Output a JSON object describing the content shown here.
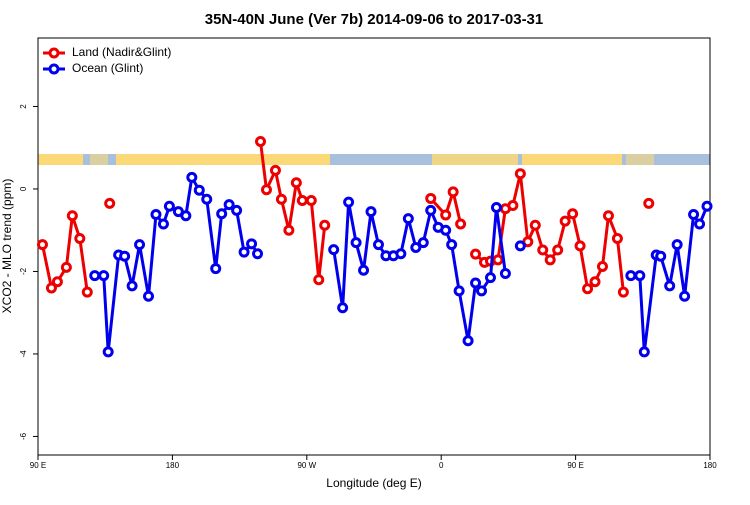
{
  "chart_data": {
    "type": "line",
    "title": "35N-40N June (Ver 7b)   2014-09-06 to 2017-03-31",
    "x_label": "Longitude (deg E)",
    "y_label": "XCO2 - MLO trend (ppm)",
    "xlim": [
      90,
      540
    ],
    "xticks": [
      {
        "value": 90,
        "label": "90 E"
      },
      180,
      {
        "value": 270,
        "label": "90 W"
      },
      {
        "value": 360,
        "label": "0"
      },
      {
        "value": 450,
        "label": "90 E"
      },
      {
        "value": 540,
        "label": "180"
      }
    ],
    "ylim": [
      -6.45,
      3.66
    ],
    "yticks": [
      -6,
      -4,
      -2,
      0,
      2
    ],
    "legend": "top-left",
    "series": [
      {
        "name": "Land (Nadir&Glint)",
        "color": "#ee0000",
        "x": [
          93,
          99,
          103,
          109,
          113,
          118,
          123,
          null,
          138,
          null,
          239,
          243,
          249,
          253,
          258,
          263,
          267,
          273,
          278,
          282,
          null,
          353,
          363,
          368,
          373,
          null,
          383,
          389,
          393,
          398,
          403,
          408,
          413,
          418,
          423,
          428,
          433,
          438,
          443,
          448,
          453,
          458,
          463,
          468,
          472,
          478,
          482,
          null,
          499
        ],
        "values": [
          -1.35,
          -2.4,
          -2.25,
          -1.9,
          -0.65,
          -1.2,
          -2.5,
          null,
          -0.35,
          null,
          1.15,
          -0.02,
          0.45,
          -0.25,
          -1.0,
          0.15,
          -0.28,
          -0.28,
          -2.2,
          -0.88,
          null,
          -0.23,
          -0.63,
          -0.07,
          -0.85,
          null,
          -1.58,
          -1.78,
          -1.75,
          -1.72,
          -0.48,
          -0.4,
          0.37,
          -1.28,
          -0.88,
          -1.48,
          -1.72,
          -1.48,
          -0.78,
          -0.6,
          -1.38,
          -2.42,
          -2.25,
          -1.88,
          -0.65,
          -1.2,
          -2.5,
          null,
          -0.35
        ]
      },
      {
        "name": "Ocean (Glint)",
        "color": "#0000ee",
        "x": [
          128,
          134,
          137,
          144,
          148,
          153,
          158,
          164,
          169,
          174,
          178,
          184,
          189,
          193,
          198,
          203,
          209,
          213,
          218,
          223,
          228,
          233,
          237,
          null,
          288,
          294,
          298,
          303,
          308,
          313,
          318,
          323,
          328,
          333,
          338,
          343,
          348,
          353,
          358,
          363,
          367,
          372,
          378,
          383,
          387,
          393,
          397,
          403,
          null,
          413,
          null,
          487,
          493,
          496,
          504,
          507,
          513,
          518,
          523,
          529,
          533,
          538
        ],
        "values": [
          -2.1,
          -2.1,
          -3.95,
          -1.6,
          -1.63,
          -2.35,
          -1.35,
          -2.6,
          -0.62,
          -0.85,
          -0.42,
          -0.55,
          -0.65,
          0.28,
          -0.03,
          -0.25,
          -1.93,
          -0.6,
          -0.38,
          -0.52,
          -1.53,
          -1.33,
          -1.57,
          null,
          -1.47,
          -2.88,
          -0.32,
          -1.3,
          -1.97,
          -0.55,
          -1.35,
          -1.62,
          -1.62,
          -1.57,
          -0.72,
          -1.42,
          -1.3,
          -0.52,
          -0.93,
          -1.0,
          -1.35,
          -2.47,
          -3.68,
          -2.28,
          -2.47,
          -2.15,
          -0.45,
          -2.05,
          null,
          -1.38,
          null,
          -2.1,
          -2.1,
          -3.95,
          -1.6,
          -1.63,
          -2.35,
          -1.35,
          -2.6,
          -0.62,
          -0.85,
          -0.42
        ]
      }
    ]
  }
}
